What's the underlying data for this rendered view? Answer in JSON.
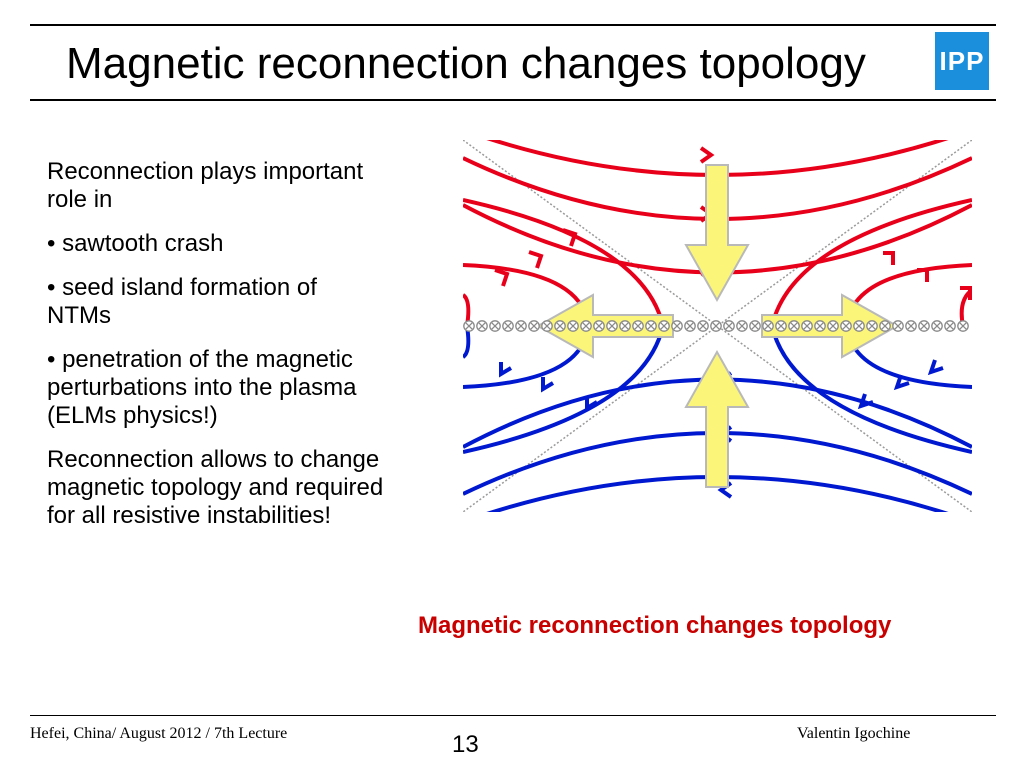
{
  "slide": {
    "title": "Magnetic reconnection changes topology",
    "logo": "IPP",
    "intro": "Reconnection plays important role in",
    "bullets": [
      "• sawtooth crash",
      "• seed island formation of NTMs",
      "• penetration of the magnetic perturbations into the plasma (ELMs physics!)"
    ],
    "conclusion": "Reconnection allows to change magnetic topology and required for all resistive instabilities!",
    "figure_caption": "Magnetic reconnection changes topology"
  },
  "footer": {
    "left": "Hefei, China/ August 2012 / 7th Lecture",
    "page": "13",
    "right": "Valentin Igochine"
  },
  "colors": {
    "field_line_red": "#e8001a",
    "field_line_blue": "#0019d0",
    "flow_arrow": "#fbf67a",
    "caption": "#c80000",
    "logo": "#1b8fdc"
  }
}
